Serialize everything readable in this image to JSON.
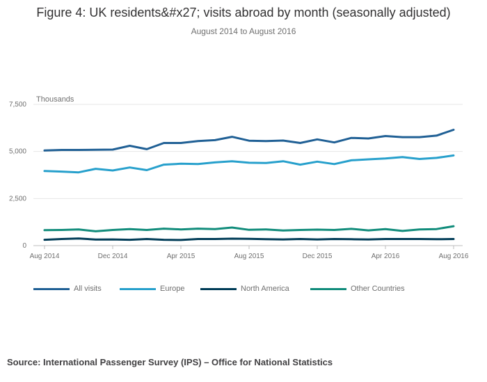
{
  "title": "Figure 4: UK residents&#x27; visits abroad by month (seasonally adjusted)",
  "subtitle": "August 2014 to August 2016",
  "source": "Source: International Passenger Survey (IPS) – Office for National Statistics",
  "chart_data": {
    "type": "line",
    "title": "Figure 4: UK residents&#x27; visits abroad by month (seasonally adjusted)",
    "subtitle": "August 2014 to August 2016",
    "ylabel": "Thousands",
    "xlabel": "",
    "ylim": [
      0,
      7500
    ],
    "yticks": [
      0,
      2500,
      5000,
      7500
    ],
    "ytick_labels": [
      "0",
      "2,500",
      "5,000",
      "7,500"
    ],
    "x": [
      "Aug 2014",
      "Sep 2014",
      "Oct 2014",
      "Nov 2014",
      "Dec 2014",
      "Jan 2015",
      "Feb 2015",
      "Mar 2015",
      "Apr 2015",
      "May 2015",
      "Jun 2015",
      "Jul 2015",
      "Aug 2015",
      "Sep 2015",
      "Oct 2015",
      "Nov 2015",
      "Dec 2015",
      "Jan 2016",
      "Feb 2016",
      "Mar 2016",
      "Apr 2016",
      "May 2016",
      "Jun 2016",
      "Jul 2016",
      "Aug 2016"
    ],
    "xtick_labels": [
      "Aug 2014",
      "Dec 2014",
      "Apr 2015",
      "Aug 2015",
      "Dec 2015",
      "Apr 2016",
      "Aug 2016"
    ],
    "xtick_index": [
      0,
      4,
      8,
      12,
      16,
      20,
      24
    ],
    "grid": true,
    "legend_position": "bottom",
    "series": [
      {
        "name": "All visits",
        "color": "#206095",
        "values": [
          5050,
          5080,
          5080,
          5090,
          5100,
          5300,
          5120,
          5450,
          5450,
          5550,
          5600,
          5780,
          5570,
          5550,
          5580,
          5450,
          5640,
          5480,
          5720,
          5690,
          5820,
          5760,
          5760,
          5840,
          6150
        ]
      },
      {
        "name": "Europe",
        "color": "#27a0cc",
        "values": [
          3960,
          3930,
          3890,
          4080,
          3990,
          4150,
          4010,
          4300,
          4350,
          4330,
          4420,
          4480,
          4400,
          4390,
          4480,
          4300,
          4460,
          4330,
          4530,
          4580,
          4630,
          4700,
          4600,
          4660,
          4790
        ]
      },
      {
        "name": "North America",
        "color": "#003c57",
        "values": [
          310,
          350,
          380,
          320,
          330,
          310,
          350,
          310,
          300,
          350,
          350,
          370,
          360,
          340,
          330,
          350,
          330,
          350,
          340,
          330,
          350,
          350,
          350,
          340,
          350
        ]
      },
      {
        "name": "Other Countries",
        "color": "#118c7b",
        "values": [
          820,
          830,
          860,
          760,
          830,
          880,
          830,
          900,
          860,
          900,
          880,
          960,
          840,
          860,
          800,
          830,
          850,
          830,
          890,
          810,
          880,
          780,
          860,
          880,
          1030
        ]
      }
    ]
  }
}
